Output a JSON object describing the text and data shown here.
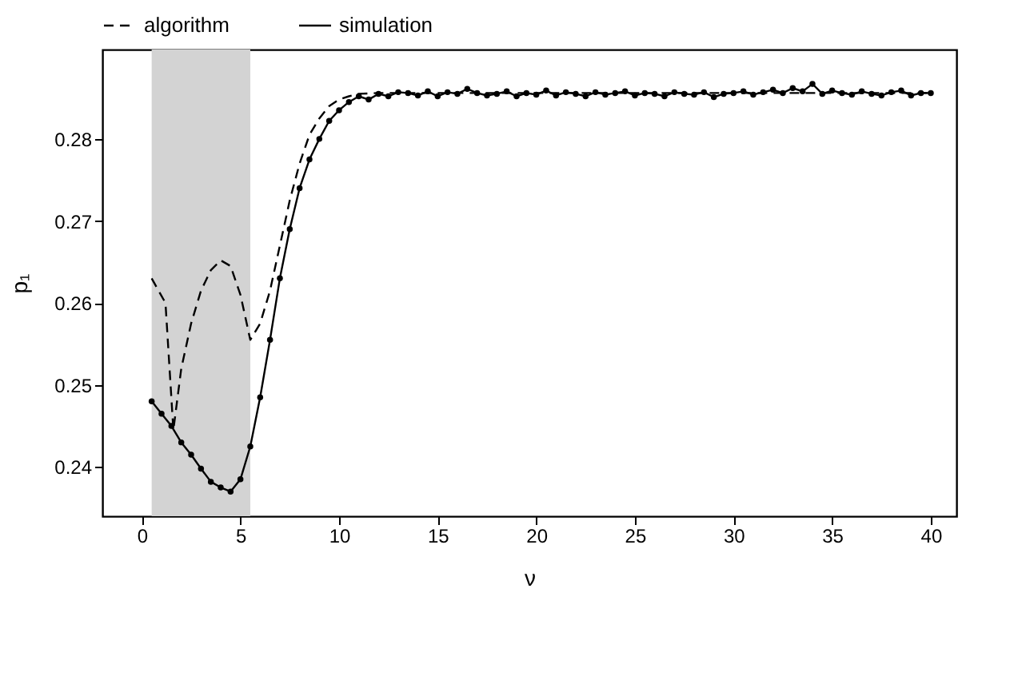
{
  "chart_data": {
    "type": "line",
    "xlabel": "ν",
    "ylabel": "p₁",
    "xlim": [
      -2,
      41.3
    ],
    "ylim": [
      0.234,
      0.2909
    ],
    "xticks": [
      0,
      5,
      10,
      15,
      20,
      25,
      30,
      35,
      40
    ],
    "yticks": [
      0.24,
      0.25,
      0.26,
      0.27,
      0.28
    ],
    "grid": false,
    "legend": "top",
    "bands": [
      {
        "axis": "x",
        "from": 0.5,
        "to": 5.5,
        "color": "#d3d3d3"
      }
    ],
    "series": [
      {
        "name": "algorithm",
        "color": "#000000",
        "line_style": "dashed",
        "marker": "none",
        "x": [
          0.5,
          1.2,
          1.6,
          2,
          2.5,
          3,
          3.5,
          4,
          4.5,
          5,
          5.5,
          6,
          6.5,
          7,
          7.5,
          8,
          8.5,
          9,
          9.5,
          10,
          10.5,
          11,
          12,
          40
        ],
        "values": [
          0.263,
          0.26,
          0.2445,
          0.252,
          0.2575,
          0.2615,
          0.264,
          0.2652,
          0.2645,
          0.261,
          0.2555,
          0.2575,
          0.2615,
          0.267,
          0.2725,
          0.277,
          0.2805,
          0.2825,
          0.284,
          0.2848,
          0.2852,
          0.2855,
          0.2856,
          0.2856
        ]
      },
      {
        "name": "simulation",
        "color": "#000000",
        "line_style": "solid",
        "marker": "circle",
        "x": [
          0.5,
          1,
          1.5,
          2,
          2.5,
          3,
          3.5,
          4,
          4.5,
          5,
          5.5,
          6,
          6.5,
          7,
          7.5,
          8,
          8.5,
          9,
          9.5,
          10,
          10.5,
          11,
          11.5,
          12,
          12.5,
          13,
          13.5,
          14,
          14.5,
          15,
          15.5,
          16,
          16.5,
          17,
          17.5,
          18,
          18.5,
          19,
          19.5,
          20,
          20.5,
          21,
          21.5,
          22,
          22.5,
          23,
          23.5,
          24,
          24.5,
          25,
          25.5,
          26,
          26.5,
          27,
          27.5,
          28,
          28.5,
          29,
          29.5,
          30,
          30.5,
          31,
          31.5,
          32,
          32.5,
          33,
          33.5,
          34,
          34.5,
          35,
          35.5,
          36,
          36.5,
          37,
          37.5,
          38,
          38.5,
          39,
          39.5,
          40
        ],
        "values": [
          0.248,
          0.2465,
          0.245,
          0.243,
          0.2415,
          0.2398,
          0.2382,
          0.2375,
          0.237,
          0.2385,
          0.2425,
          0.2485,
          0.2555,
          0.263,
          0.269,
          0.274,
          0.2775,
          0.28,
          0.2822,
          0.2835,
          0.2845,
          0.2852,
          0.2848,
          0.2855,
          0.2852,
          0.2857,
          0.2856,
          0.2853,
          0.2858,
          0.2852,
          0.2857,
          0.2855,
          0.2861,
          0.2856,
          0.2853,
          0.2855,
          0.2858,
          0.2852,
          0.2856,
          0.2854,
          0.2859,
          0.2853,
          0.2857,
          0.2855,
          0.2852,
          0.2857,
          0.2854,
          0.2856,
          0.2858,
          0.2853,
          0.2856,
          0.2855,
          0.2852,
          0.2857,
          0.2855,
          0.2854,
          0.2857,
          0.2851,
          0.2855,
          0.2856,
          0.2858,
          0.2854,
          0.2857,
          0.286,
          0.2856,
          0.2862,
          0.2858,
          0.2867,
          0.2855,
          0.2859,
          0.2856,
          0.2854,
          0.2858,
          0.2855,
          0.2853,
          0.2857,
          0.2859,
          0.2853,
          0.2856,
          0.2856
        ]
      }
    ]
  }
}
